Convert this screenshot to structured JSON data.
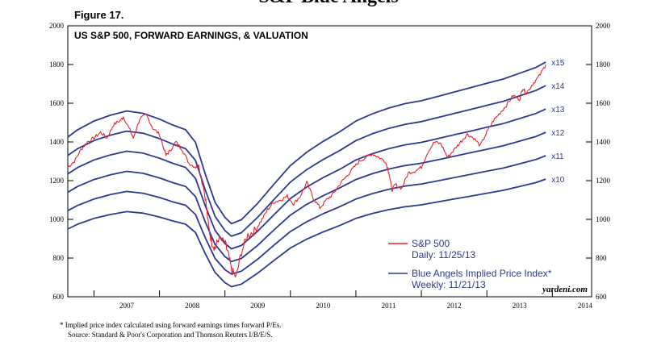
{
  "page": {
    "header_text": "S&P Blue Angels",
    "figure_label": "Figure 17.",
    "footnote": "*  Implied price index calculated using forward earnings times forward P/Es.",
    "source": "Source: Standard & Poor's Corporation and Thomson Reuters I/B/E/S.",
    "watermark": "yardeni.com"
  },
  "chart_data": {
    "type": "line",
    "title": "US S&P 500, FORWARD EARNINGS, & VALUATION",
    "xlabel": "",
    "ylabel": "",
    "ylim": [
      600,
      2000
    ],
    "xlim": [
      2006.6,
      2014.6
    ],
    "y_ticks": [
      600,
      800,
      1000,
      1200,
      1400,
      1600,
      1800,
      2000
    ],
    "x_ticks": [
      "2007",
      "2008",
      "2009",
      "2010",
      "2011",
      "2012",
      "2013",
      "2014"
    ],
    "grid": false,
    "legend_position": "bottom-right",
    "legend": [
      {
        "label": "S&P 500",
        "sublabel": "Daily: 11/25/13",
        "color": "#e8232a"
      },
      {
        "label": "Blue Angels Implied Price Index*",
        "sublabel": "Weekly: 11/21/13",
        "color": "#2b3990"
      }
    ],
    "colors": {
      "sp500": "#e8232a",
      "angels": "#2b3990"
    },
    "forward_earnings_x": [
      2006.6,
      2006.75,
      2007.0,
      2007.25,
      2007.5,
      2007.75,
      2008.0,
      2008.2,
      2008.4,
      2008.55,
      2008.7,
      2008.85,
      2009.0,
      2009.1,
      2009.25,
      2009.5,
      2009.75,
      2010.0,
      2010.25,
      2010.5,
      2010.75,
      2011.0,
      2011.25,
      2011.5,
      2011.75,
      2012.0,
      2012.25,
      2012.5,
      2012.75,
      2013.0,
      2013.25,
      2013.5,
      2013.75,
      2013.9
    ],
    "angels_series": [
      {
        "multiple": 10,
        "label": "x10",
        "values": [
          950,
          975,
          1005,
          1025,
          1040,
          1032,
          1012,
          992,
          975,
          932,
          822,
          725,
          673,
          652,
          665,
          722,
          788,
          852,
          898,
          935,
          968,
          1005,
          1030,
          1050,
          1065,
          1075,
          1090,
          1105,
          1120,
          1135,
          1150,
          1170,
          1190,
          1208
        ]
      },
      {
        "multiple": 11,
        "label": "x11",
        "values": [
          1045,
          1072,
          1105,
          1128,
          1144,
          1135,
          1113,
          1091,
          1073,
          1025,
          904,
          798,
          740,
          717,
          732,
          794,
          867,
          937,
          988,
          1029,
          1065,
          1105,
          1133,
          1155,
          1172,
          1183,
          1199,
          1216,
          1232,
          1249,
          1265,
          1287,
          1309,
          1329
        ]
      },
      {
        "multiple": 12,
        "label": "x12",
        "values": [
          1140,
          1170,
          1206,
          1230,
          1248,
          1238,
          1214,
          1190,
          1170,
          1118,
          986,
          870,
          808,
          782,
          798,
          866,
          946,
          1022,
          1078,
          1122,
          1162,
          1206,
          1236,
          1260,
          1278,
          1290,
          1308,
          1326,
          1344,
          1362,
          1380,
          1404,
          1428,
          1450
        ]
      },
      {
        "multiple": 13,
        "label": "x13",
        "values": [
          1235,
          1268,
          1307,
          1333,
          1352,
          1342,
          1316,
          1290,
          1268,
          1212,
          1069,
          943,
          875,
          848,
          865,
          939,
          1024,
          1108,
          1167,
          1216,
          1258,
          1307,
          1339,
          1365,
          1385,
          1398,
          1417,
          1437,
          1456,
          1476,
          1495,
          1521,
          1547,
          1570
        ]
      },
      {
        "multiple": 14,
        "label": "x14",
        "values": [
          1330,
          1365,
          1407,
          1435,
          1456,
          1445,
          1417,
          1389,
          1365,
          1305,
          1151,
          1015,
          942,
          913,
          931,
          1011,
          1103,
          1193,
          1257,
          1309,
          1355,
          1407,
          1442,
          1470,
          1491,
          1505,
          1526,
          1547,
          1568,
          1589,
          1610,
          1638,
          1666,
          1691
        ]
      },
      {
        "multiple": 15,
        "label": "x15",
        "values": [
          1425,
          1463,
          1508,
          1538,
          1560,
          1548,
          1518,
          1488,
          1463,
          1398,
          1233,
          1088,
          1010,
          978,
          998,
          1083,
          1182,
          1278,
          1347,
          1403,
          1452,
          1508,
          1545,
          1575,
          1598,
          1613,
          1635,
          1658,
          1680,
          1703,
          1725,
          1755,
          1785,
          1812
        ]
      }
    ],
    "sp500_x": [
      2006.6,
      2006.7,
      2006.8,
      2006.9,
      2007.0,
      2007.1,
      2007.2,
      2007.3,
      2007.4,
      2007.45,
      2007.55,
      2007.6,
      2007.7,
      2007.8,
      2007.9,
      2008.0,
      2008.1,
      2008.15,
      2008.25,
      2008.35,
      2008.45,
      2008.55,
      2008.6,
      2008.7,
      2008.75,
      2008.8,
      2008.85,
      2008.9,
      2009.0,
      2009.05,
      2009.1,
      2009.17,
      2009.25,
      2009.35,
      2009.45,
      2009.55,
      2009.65,
      2009.75,
      2009.85,
      2009.95,
      2010.05,
      2010.15,
      2010.25,
      2010.35,
      2010.45,
      2010.55,
      2010.65,
      2010.75,
      2010.85,
      2010.95,
      2011.05,
      2011.15,
      2011.25,
      2011.35,
      2011.45,
      2011.5,
      2011.55,
      2011.6,
      2011.7,
      2011.8,
      2011.9,
      2012.0,
      2012.1,
      2012.2,
      2012.3,
      2012.4,
      2012.5,
      2012.6,
      2012.7,
      2012.8,
      2012.9,
      2013.0,
      2013.1,
      2013.2,
      2013.3,
      2013.4,
      2013.5,
      2013.55,
      2013.6,
      2013.7,
      2013.8,
      2013.9
    ],
    "sp500_values": [
      1270,
      1300,
      1360,
      1400,
      1420,
      1450,
      1420,
      1490,
      1510,
      1530,
      1460,
      1420,
      1520,
      1540,
      1470,
      1440,
      1330,
      1350,
      1400,
      1360,
      1290,
      1270,
      1280,
      1120,
      960,
      880,
      850,
      900,
      880,
      820,
      740,
      700,
      830,
      920,
      940,
      990,
      1050,
      1090,
      1100,
      1120,
      1080,
      1120,
      1190,
      1110,
      1060,
      1100,
      1130,
      1180,
      1220,
      1260,
      1300,
      1320,
      1340,
      1320,
      1300,
      1250,
      1150,
      1180,
      1160,
      1240,
      1250,
      1270,
      1350,
      1400,
      1390,
      1320,
      1360,
      1400,
      1440,
      1420,
      1380,
      1450,
      1510,
      1550,
      1590,
      1640,
      1620,
      1680,
      1650,
      1700,
      1740,
      1800
    ]
  }
}
